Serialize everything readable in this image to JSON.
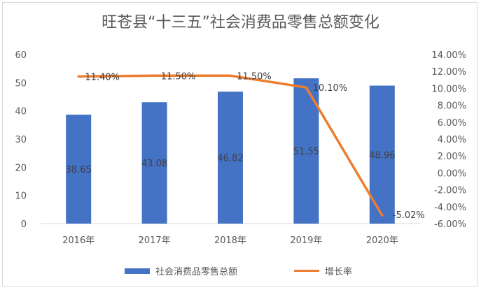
{
  "chart_data": {
    "type": "bar",
    "title": "旺苍县“十三五”社会消费品零售总额变化",
    "categories": [
      "2016年",
      "2017年",
      "2018年",
      "2019年",
      "2020年"
    ],
    "series": [
      {
        "name": "社会消费品零售总额",
        "type": "bar",
        "axis": "left",
        "color": "#4472c4",
        "values": [
          38.65,
          43.08,
          46.82,
          51.55,
          48.96
        ],
        "labels": [
          "38.65",
          "43.08",
          "46.82",
          "51.55",
          "48.96"
        ]
      },
      {
        "name": "增长率",
        "type": "line",
        "axis": "right",
        "color": "#ed7d31",
        "values": [
          11.4,
          11.5,
          11.5,
          10.1,
          -5.02
        ],
        "labels": [
          "11.40%",
          "11.50%",
          "11.50%",
          "10.10%",
          "-5.02%"
        ]
      }
    ],
    "ylim": [
      0,
      60
    ],
    "y_ticks": [
      "0",
      "10",
      "20",
      "30",
      "40",
      "50",
      "60"
    ],
    "y2lim": [
      -6,
      14
    ],
    "y2_ticks": [
      "-6.00%",
      "-4.00%",
      "-2.00%",
      "0.00%",
      "2.00%",
      "4.00%",
      "6.00%",
      "8.00%",
      "10.00%",
      "12.00%",
      "14.00%"
    ],
    "grid": false,
    "legend": "bottom"
  }
}
